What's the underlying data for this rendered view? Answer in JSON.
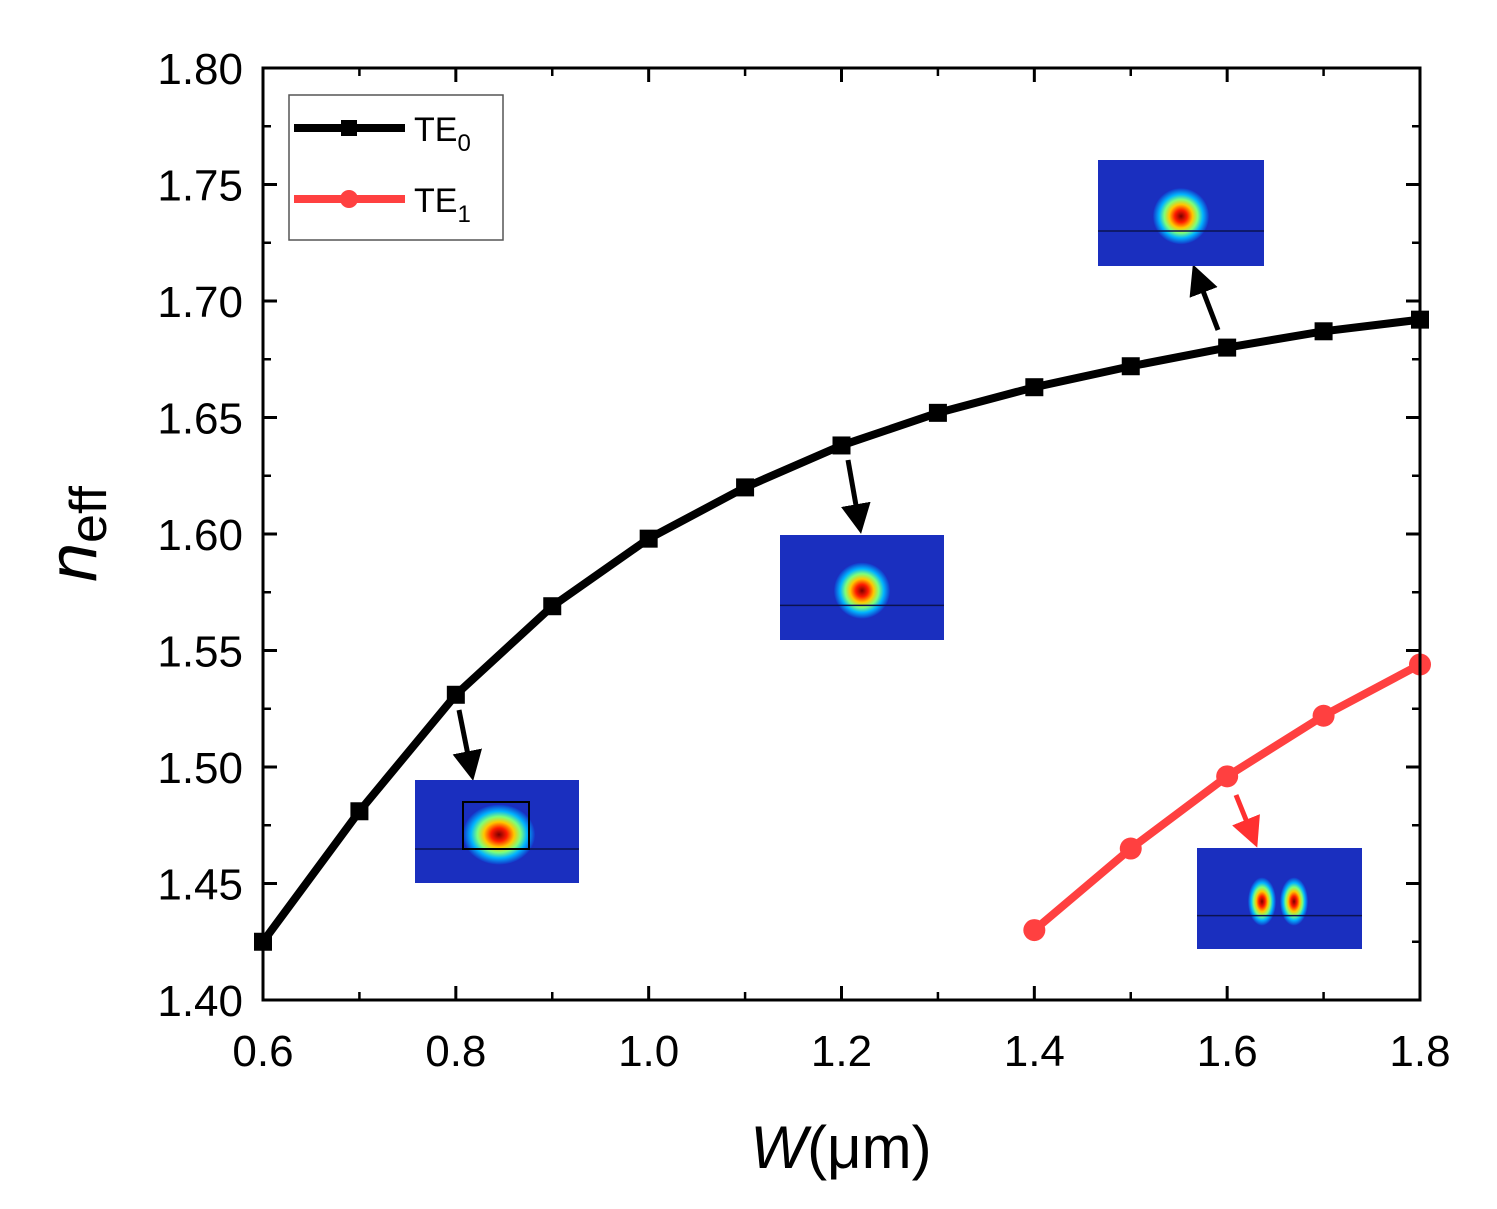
{
  "chart_data": {
    "type": "line",
    "title": "",
    "xlabel": {
      "symbol": "W",
      "unit": "(μm)"
    },
    "ylabel": {
      "symbol": "n",
      "subscript": "eff"
    },
    "xlim": [
      0.6,
      1.8
    ],
    "ylim": [
      1.4,
      1.8
    ],
    "xticks": [
      "0.6",
      "0.8",
      "1.0",
      "1.2",
      "1.4",
      "1.6",
      "1.8"
    ],
    "yticks": [
      "1.40",
      "1.45",
      "1.50",
      "1.55",
      "1.60",
      "1.65",
      "1.70",
      "1.75",
      "1.80"
    ],
    "legend_position": "top-left",
    "series": [
      {
        "name": "TE",
        "subscript": "0",
        "color": "#000000",
        "marker": "square",
        "x": [
          0.6,
          0.7,
          0.8,
          0.9,
          1.0,
          1.1,
          1.2,
          1.3,
          1.4,
          1.5,
          1.6,
          1.7,
          1.8
        ],
        "y": [
          1.425,
          1.481,
          1.531,
          1.569,
          1.598,
          1.62,
          1.638,
          1.652,
          1.663,
          1.672,
          1.68,
          1.687,
          1.692
        ]
      },
      {
        "name": "TE",
        "subscript": "1",
        "color": "#ff4040",
        "marker": "circle",
        "x": [
          1.4,
          1.5,
          1.6,
          1.7,
          1.8
        ],
        "y": [
          1.43,
          1.465,
          1.496,
          1.522,
          1.544
        ]
      }
    ],
    "insets": [
      {
        "mode": "TE0",
        "at_x": 0.8,
        "arrow_color": "#000000",
        "lobes": 1
      },
      {
        "mode": "TE0",
        "at_x": 1.2,
        "arrow_color": "#000000",
        "lobes": 1
      },
      {
        "mode": "TE0",
        "at_x": 1.6,
        "arrow_color": "#000000",
        "lobes": 1
      },
      {
        "mode": "TE1",
        "at_x": 1.6,
        "arrow_color": "#ff3030",
        "lobes": 2
      }
    ]
  }
}
